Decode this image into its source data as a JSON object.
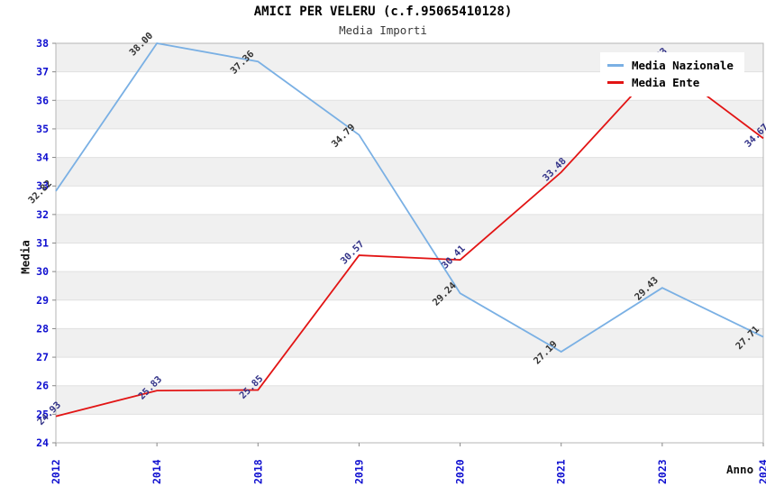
{
  "title": "AMICI PER VELERU (c.f.95065410128)",
  "subtitle": "Media Importi",
  "axes": {
    "x_title": "Anno",
    "y_title": "Media"
  },
  "colors": {
    "tick_label": "#1010d0",
    "band": "#f0f0f0",
    "grid": "#e0e0e0",
    "frame": "#b5b5b5",
    "tick_mark": "#888888",
    "background": "#ffffff"
  },
  "legend": {
    "items": [
      {
        "label": "Media Nazionale",
        "color": "#7ab0e4"
      },
      {
        "label": "Media Ente",
        "color": "#e21414"
      }
    ]
  },
  "chart_data": {
    "type": "line",
    "title": "AMICI PER VELERU (c.f.95065410128)",
    "subtitle": "Media Importi",
    "xlabel": "Anno",
    "ylabel": "Media",
    "categories": [
      "2012",
      "2014",
      "2018",
      "2019",
      "2020",
      "2021",
      "2023",
      "2024"
    ],
    "series": [
      {
        "name": "Media Nazionale",
        "color": "#7ab0e4",
        "label_color": "#333333",
        "values": [
          32.82,
          38.0,
          37.36,
          34.79,
          29.24,
          27.19,
          29.43,
          27.71
        ],
        "labels": [
          "32.82",
          "38.00",
          "37.36",
          "34.79",
          "29.24",
          "27.19",
          "29.43",
          "27.71"
        ]
      },
      {
        "name": "Media Ente",
        "color": "#e21414",
        "label_color": "#333388",
        "values": [
          24.93,
          25.83,
          25.85,
          30.57,
          30.41,
          33.48,
          37.33,
          34.67
        ],
        "labels": [
          "24.93",
          "25.83",
          "25.85",
          "30.57",
          "30.41",
          "33.48",
          "37.33",
          "34.67"
        ]
      }
    ],
    "ylim": [
      24,
      38
    ],
    "y_tick_step": 1,
    "grid": true,
    "banded_background": true,
    "legend_position": "top-right"
  }
}
